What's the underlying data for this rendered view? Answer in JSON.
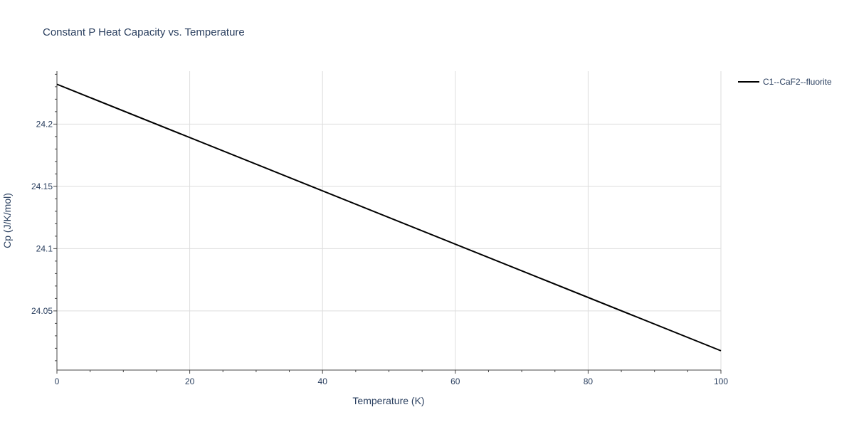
{
  "chart_data": {
    "type": "line",
    "title": "Constant P Heat Capacity vs. Temperature",
    "xlabel": "Temperature (K)",
    "ylabel": "Cp (J/K/mol)",
    "xlim": [
      0,
      100
    ],
    "ylim": [
      24.0025,
      24.2425
    ],
    "x_ticks": [
      0,
      20,
      40,
      60,
      80,
      100
    ],
    "x_tick_labels": [
      "0",
      "20",
      "40",
      "60",
      "80",
      "100"
    ],
    "y_ticks": [
      24.05,
      24.1,
      24.15,
      24.2
    ],
    "y_tick_labels": [
      "24.05",
      "24.1",
      "24.15",
      "24.2"
    ],
    "grid": true,
    "legend_position": "top-right",
    "series": [
      {
        "name": "C1--CaF2--fluorite",
        "color": "#000000",
        "x": [
          0,
          100
        ],
        "y": [
          24.232,
          24.018
        ]
      }
    ]
  }
}
